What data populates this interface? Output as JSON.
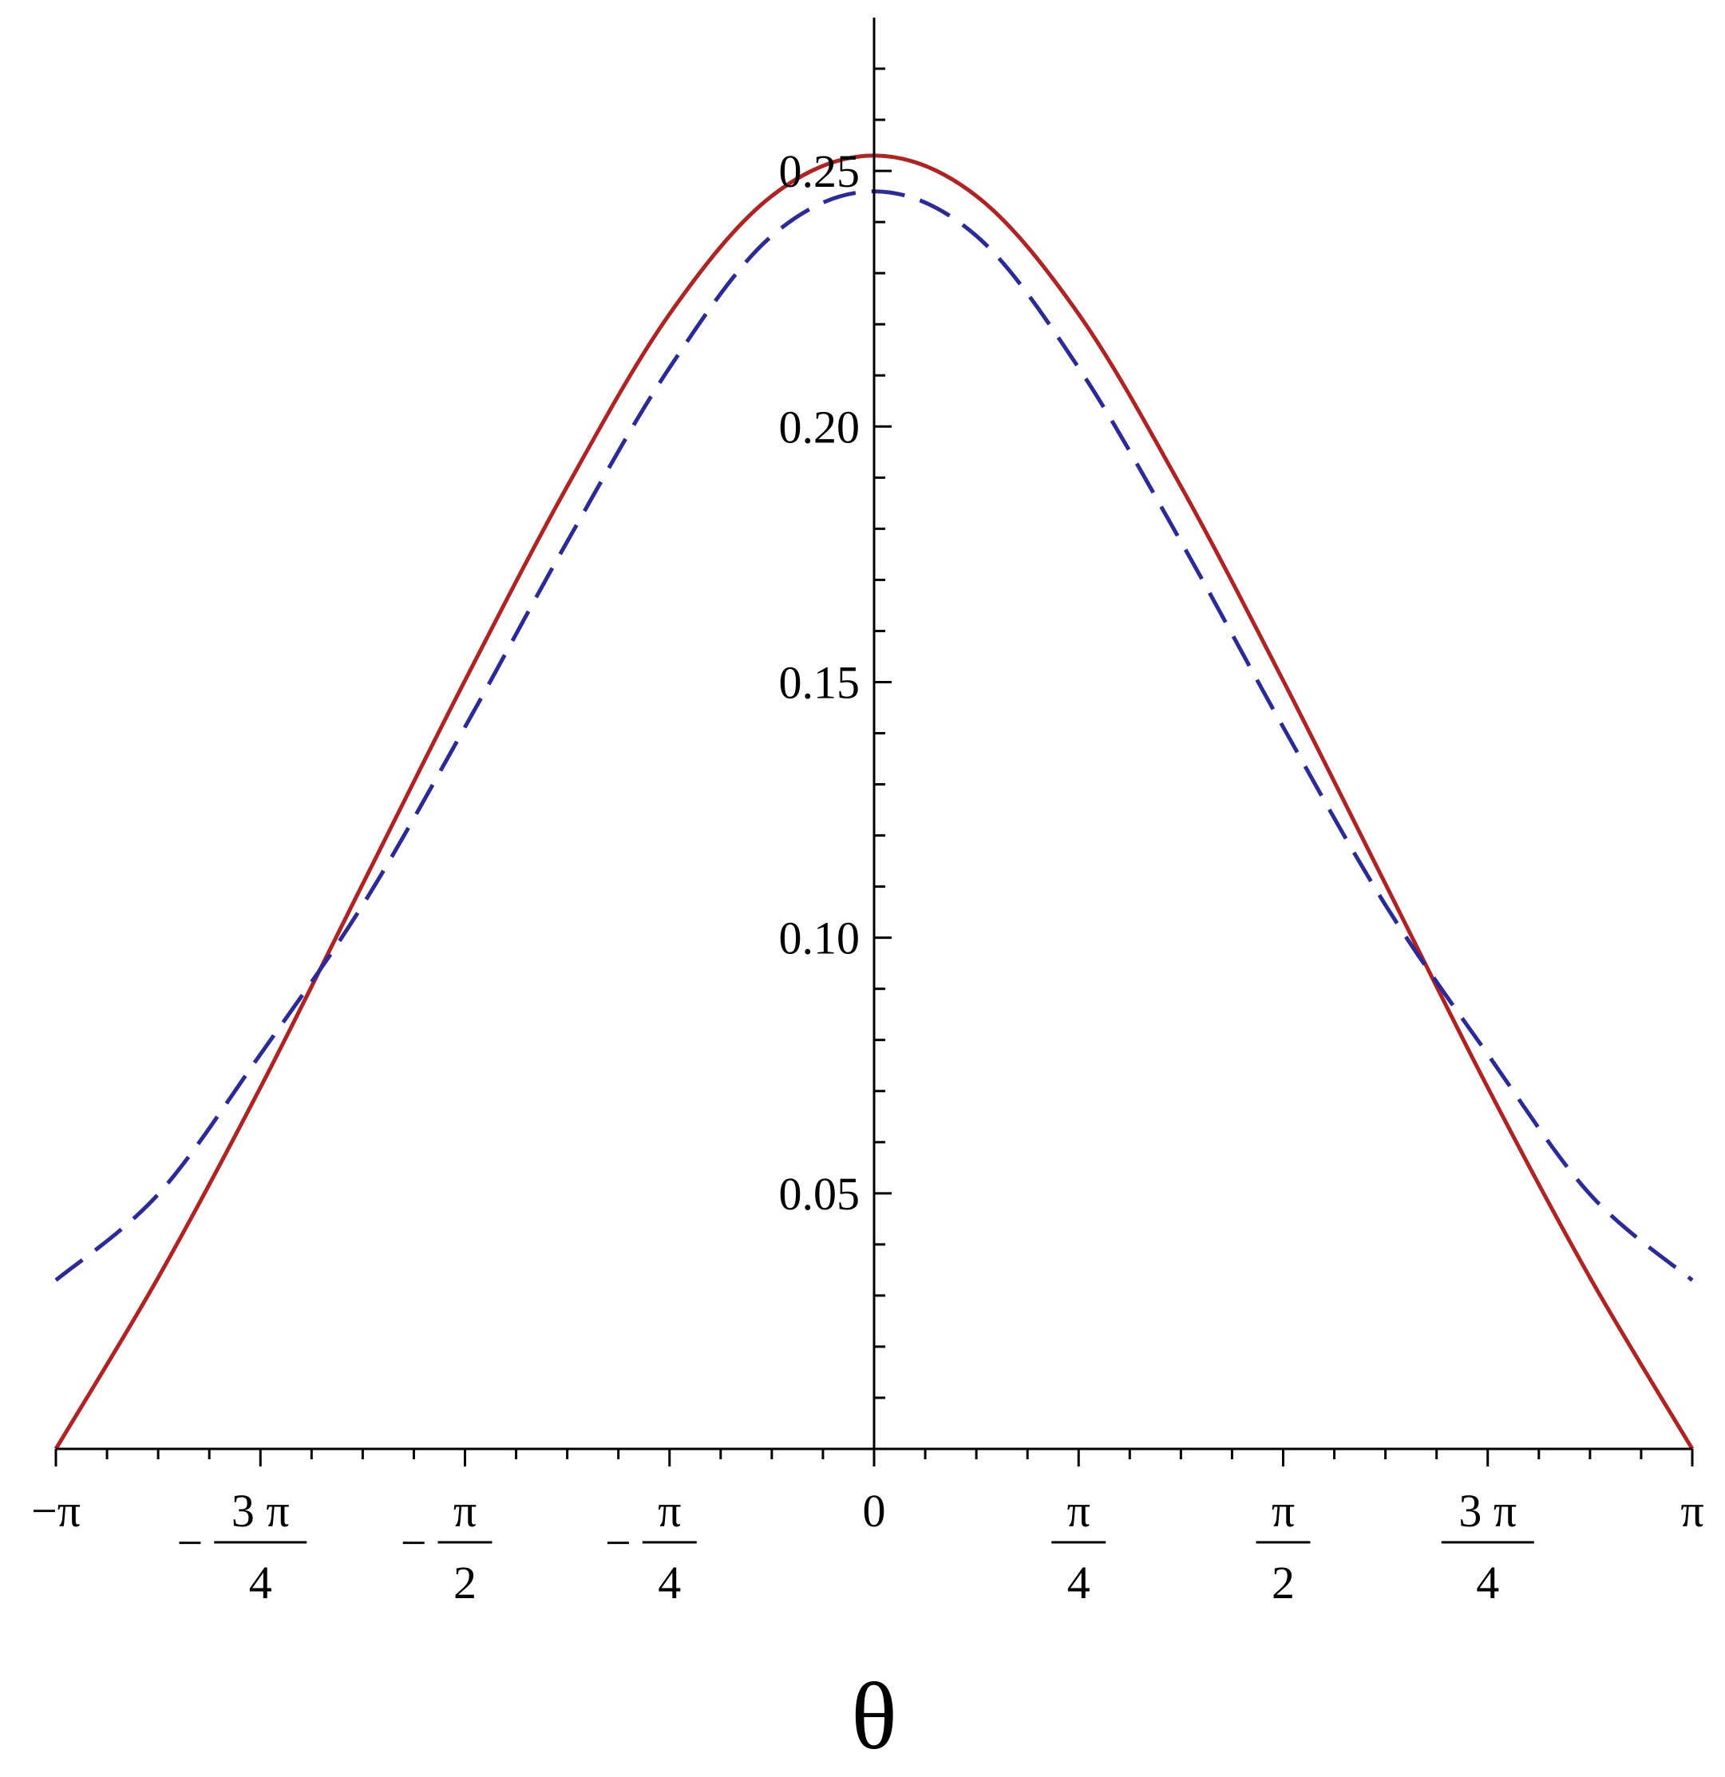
{
  "chart_data": {
    "type": "line",
    "title": "",
    "xlabel": "θ",
    "ylabel": "",
    "xlim": [
      -3.14159265,
      3.14159265
    ],
    "ylim": [
      0.0,
      0.28
    ],
    "grid": false,
    "legend": "none",
    "x_ticks": [
      {
        "value": -3.14159265,
        "minus": "",
        "num": "−π",
        "den": ""
      },
      {
        "value": -2.35619449,
        "minus": "−",
        "num": "3 π",
        "den": "4"
      },
      {
        "value": -1.57079633,
        "minus": "−",
        "num": "π",
        "den": "2"
      },
      {
        "value": -0.78539816,
        "minus": "−",
        "num": "π",
        "den": "4"
      },
      {
        "value": 0.0,
        "minus": "",
        "num": "0",
        "den": ""
      },
      {
        "value": 0.78539816,
        "minus": "",
        "num": "π",
        "den": "4"
      },
      {
        "value": 1.57079633,
        "minus": "",
        "num": "π",
        "den": "2"
      },
      {
        "value": 2.35619449,
        "minus": "",
        "num": "3 π",
        "den": "4"
      },
      {
        "value": 3.14159265,
        "minus": "",
        "num": "π",
        "den": ""
      }
    ],
    "y_ticks": [
      {
        "value": 0.05,
        "label": "0.05"
      },
      {
        "value": 0.1,
        "label": "0.10"
      },
      {
        "value": 0.15,
        "label": "0.15"
      },
      {
        "value": 0.2,
        "label": "0.20"
      },
      {
        "value": 0.25,
        "label": "0.25"
      }
    ],
    "series": [
      {
        "color": "#b22222",
        "style": "solid",
        "x": [
          -3.1416,
          -2.7489,
          -2.3562,
          -1.9635,
          -1.5708,
          -1.1781,
          -0.7854,
          -0.3927,
          0.0,
          0.3927,
          0.7854,
          1.1781,
          1.5708,
          1.9635,
          2.3562,
          2.7489,
          3.1416
        ],
        "y": [
          0.0,
          0.0335,
          0.0707,
          0.1105,
          0.1503,
          0.1883,
          0.222,
          0.2451,
          0.253,
          0.2451,
          0.222,
          0.1883,
          0.1503,
          0.1105,
          0.0707,
          0.0335,
          0.0
        ]
      },
      {
        "color": "#2a2a9a",
        "style": "dashed",
        "x": [
          -3.1416,
          -2.7489,
          -2.3562,
          -1.9635,
          -1.5708,
          -1.1781,
          -0.7854,
          -0.3927,
          0.0,
          0.3927,
          0.7854,
          1.1781,
          1.5708,
          1.9635,
          2.3562,
          2.7489,
          3.1416
        ],
        "y": [
          0.033,
          0.0498,
          0.0772,
          0.1064,
          0.1412,
          0.1775,
          0.2115,
          0.2373,
          0.246,
          0.2373,
          0.2115,
          0.1775,
          0.1412,
          0.1064,
          0.0772,
          0.0498,
          0.033
        ]
      }
    ]
  }
}
